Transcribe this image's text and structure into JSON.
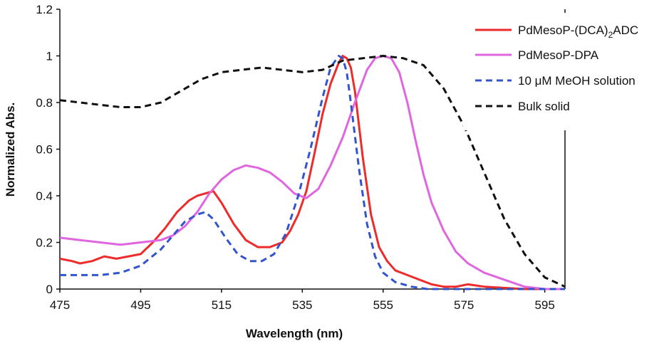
{
  "chart_data": {
    "type": "line",
    "xlabel": "Wavelength (nm)",
    "ylabel": "Normalized Abs.",
    "xlim": [
      475,
      600
    ],
    "ylim": [
      0,
      1.2
    ],
    "xticks": [
      "475",
      "495",
      "515",
      "535",
      "555",
      "575",
      "595"
    ],
    "yticks": [
      "0",
      "0.2",
      "0.4",
      "0.6",
      "0.8",
      "1",
      "1.2"
    ],
    "grid": false,
    "legend_position": "top-right",
    "series": [
      {
        "name": "PdMesoP-(DCA)2ADC",
        "name_main": "PdMesoP-(DCA)",
        "name_sub": "2",
        "name_tail": "ADC",
        "color": "#ee2b2b",
        "dash": "solid",
        "x": [
          475,
          478,
          480,
          483,
          486,
          489,
          492,
          495,
          498,
          501,
          504,
          507,
          509,
          511,
          513,
          515,
          518,
          521,
          524,
          527,
          530,
          532,
          534,
          536,
          538,
          540,
          542,
          544,
          545,
          546,
          547,
          548,
          550,
          552,
          554,
          556,
          558,
          561,
          564,
          567,
          570,
          573,
          576,
          580,
          585,
          590,
          595,
          600
        ],
        "y": [
          0.13,
          0.12,
          0.11,
          0.12,
          0.14,
          0.13,
          0.14,
          0.15,
          0.2,
          0.26,
          0.33,
          0.38,
          0.4,
          0.41,
          0.42,
          0.37,
          0.28,
          0.21,
          0.18,
          0.18,
          0.2,
          0.25,
          0.32,
          0.42,
          0.58,
          0.75,
          0.88,
          0.97,
          1.0,
          0.99,
          0.95,
          0.85,
          0.56,
          0.32,
          0.18,
          0.12,
          0.08,
          0.06,
          0.04,
          0.02,
          0.01,
          0.01,
          0.02,
          0.01,
          0.005,
          0.0,
          0.0,
          0.0
        ]
      },
      {
        "name": "PdMesoP-DPA",
        "color": "#e066e0",
        "dash": "solid",
        "x": [
          475,
          480,
          485,
          490,
          495,
          500,
          503,
          506,
          509,
          512,
          515,
          518,
          521,
          524,
          527,
          530,
          533,
          536,
          539,
          542,
          545,
          548,
          551,
          553,
          555,
          557,
          559,
          561,
          563,
          565,
          567,
          570,
          573,
          576,
          580,
          585,
          590,
          595,
          600
        ],
        "y": [
          0.22,
          0.21,
          0.2,
          0.19,
          0.2,
          0.21,
          0.23,
          0.27,
          0.33,
          0.41,
          0.47,
          0.51,
          0.53,
          0.52,
          0.5,
          0.46,
          0.41,
          0.39,
          0.43,
          0.53,
          0.65,
          0.8,
          0.94,
          0.99,
          1.0,
          0.99,
          0.93,
          0.8,
          0.64,
          0.49,
          0.37,
          0.25,
          0.16,
          0.11,
          0.07,
          0.04,
          0.01,
          0.0,
          0.0
        ]
      },
      {
        "name": "10 μM MeOH solution",
        "color": "#3355cc",
        "dash": "dashed",
        "x": [
          475,
          480,
          485,
          490,
          495,
          500,
          503,
          506,
          509,
          511,
          513,
          516,
          519,
          522,
          525,
          528,
          531,
          534,
          537,
          540,
          542,
          544,
          545,
          546,
          547,
          549,
          551,
          553,
          555,
          558,
          562,
          566,
          570,
          575,
          580,
          590,
          600
        ],
        "y": [
          0.06,
          0.06,
          0.06,
          0.07,
          0.1,
          0.17,
          0.23,
          0.29,
          0.32,
          0.33,
          0.3,
          0.22,
          0.15,
          0.12,
          0.12,
          0.15,
          0.24,
          0.4,
          0.6,
          0.82,
          0.95,
          1.0,
          0.99,
          0.93,
          0.8,
          0.52,
          0.28,
          0.14,
          0.07,
          0.03,
          0.01,
          0.0,
          0.0,
          0.0,
          0.0,
          0.0,
          0.0
        ]
      },
      {
        "name": "Bulk solid",
        "color": "#111111",
        "dash": "dashed",
        "x": [
          475,
          480,
          485,
          490,
          495,
          500,
          505,
          510,
          515,
          520,
          525,
          530,
          535,
          540,
          545,
          550,
          555,
          560,
          565,
          570,
          575,
          580,
          585,
          590,
          595,
          600
        ],
        "y": [
          0.81,
          0.8,
          0.79,
          0.78,
          0.78,
          0.8,
          0.85,
          0.9,
          0.93,
          0.94,
          0.95,
          0.94,
          0.93,
          0.94,
          0.98,
          0.99,
          1.0,
          0.99,
          0.96,
          0.86,
          0.7,
          0.5,
          0.3,
          0.15,
          0.05,
          0.01
        ]
      }
    ]
  }
}
